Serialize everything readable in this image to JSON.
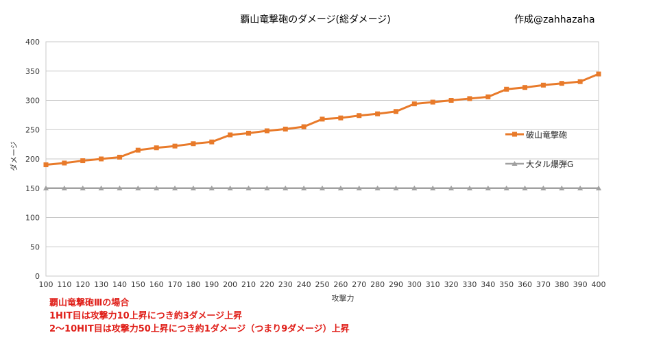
{
  "chart_data": {
    "type": "line",
    "title": "覇山竜撃砲のダメージ(総ダメージ)",
    "author": "作成@zahhazaha",
    "xlabel": "攻撃力",
    "ylabel": "ダメージ",
    "ylim": [
      0,
      400
    ],
    "yticks": [
      0,
      50,
      100,
      150,
      200,
      250,
      300,
      350,
      400
    ],
    "grid": true,
    "legend_position": "right",
    "x": [
      100,
      110,
      120,
      130,
      140,
      150,
      160,
      170,
      180,
      190,
      200,
      210,
      220,
      230,
      240,
      250,
      260,
      270,
      280,
      290,
      300,
      310,
      320,
      330,
      340,
      350,
      360,
      370,
      380,
      390,
      400
    ],
    "series": [
      {
        "name": "破山竜撃砲",
        "color": "#e87a2a",
        "marker": "square",
        "values": [
          190,
          193,
          197,
          200,
          203,
          215,
          219,
          222,
          226,
          229,
          241,
          244,
          248,
          251,
          255,
          268,
          270,
          274,
          277,
          281,
          294,
          297,
          300,
          303,
          306,
          319,
          322,
          326,
          329,
          332,
          345
        ]
      },
      {
        "name": "大タル爆弾G",
        "color": "#a0a0a0",
        "marker": "triangle",
        "values": [
          150,
          150,
          150,
          150,
          150,
          150,
          150,
          150,
          150,
          150,
          150,
          150,
          150,
          150,
          150,
          150,
          150,
          150,
          150,
          150,
          150,
          150,
          150,
          150,
          150,
          150,
          150,
          150,
          150,
          150,
          150
        ]
      }
    ]
  },
  "notes": [
    "覇山竜撃砲Ⅲの場合",
    "1HIT目は攻撃力10上昇につき約3ダメージ上昇",
    "2〜10HIT目は攻撃力50上昇につき約1ダメージ（つまり9ダメージ）上昇"
  ]
}
